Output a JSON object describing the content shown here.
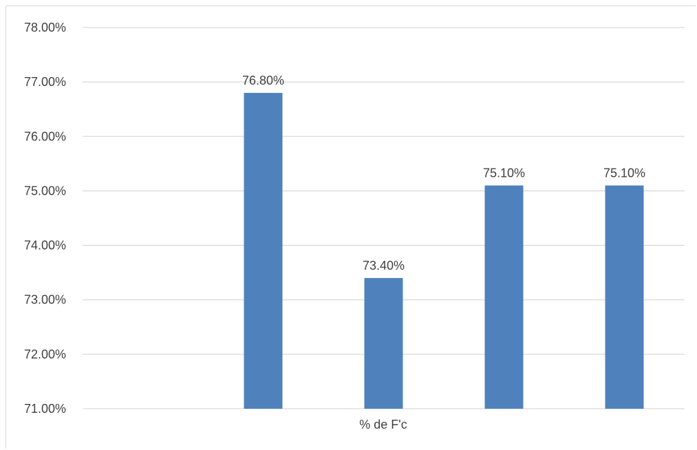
{
  "chart_data": {
    "type": "bar",
    "xlabel": "% de F'c",
    "ylabel": "",
    "ylim": [
      0.71,
      0.78
    ],
    "y_ticks": [
      "78.00%",
      "77.00%",
      "76.00%",
      "75.00%",
      "74.00%",
      "73.00%",
      "72.00%",
      "71.00%"
    ],
    "series": [
      {
        "values": [
          null,
          0.768,
          0.734,
          0.751,
          0.751
        ],
        "data_labels": [
          "",
          "76.80%",
          "73.40%",
          "75.10%",
          "75.10%"
        ]
      }
    ],
    "grid": true,
    "legend": "none",
    "colors": {
      "bar": "#4f81bd",
      "grid": "#d9d9d9",
      "text": "#404040"
    }
  }
}
